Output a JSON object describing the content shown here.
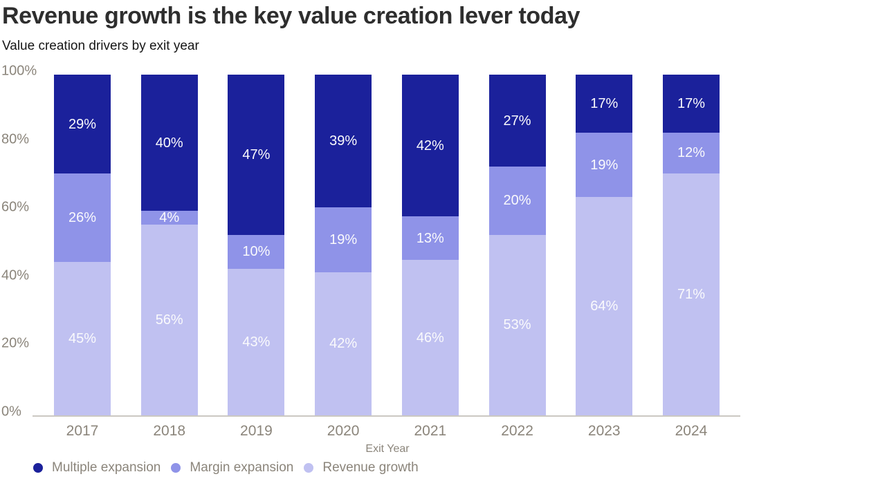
{
  "title": "Revenue growth is the key value creation lever today",
  "subtitle": "Value creation drivers by exit year",
  "colors": {
    "multiple_expansion": "#1b219b",
    "margin_expansion": "#8f93e8",
    "revenue_growth": "#c0c1f1",
    "axis_text": "#8b857b",
    "axis_line": "#cbc8c2",
    "value_label_text": "#fafafc",
    "title_text": "#2e2e2e"
  },
  "chart_data": {
    "type": "bar",
    "stacked": true,
    "title": "Revenue growth is the key value creation lever today",
    "subtitle": "Value creation drivers by exit year",
    "categories": [
      "2017",
      "2018",
      "2019",
      "2020",
      "2021",
      "2022",
      "2023",
      "2024"
    ],
    "series": [
      {
        "name": "Revenue growth",
        "color": "#c0c1f1",
        "values": [
          45,
          56,
          43,
          42,
          46,
          53,
          64,
          71
        ]
      },
      {
        "name": "Margin expansion",
        "color": "#8f93e8",
        "values": [
          26,
          4,
          10,
          19,
          13,
          20,
          19,
          12
        ]
      },
      {
        "name": "Multiple expansion",
        "color": "#1b219b",
        "values": [
          29,
          40,
          47,
          39,
          42,
          27,
          17,
          17
        ]
      }
    ],
    "xlabel": "Exit Year",
    "ylabel": "",
    "ylim": [
      0,
      100
    ],
    "yticks": [
      "100%",
      "80%",
      "60%",
      "40%",
      "20%",
      "0%"
    ],
    "value_suffix": "%",
    "grid": false,
    "legend_position": "bottom",
    "legend": [
      "Multiple expansion",
      "Margin expansion",
      "Revenue growth"
    ]
  }
}
